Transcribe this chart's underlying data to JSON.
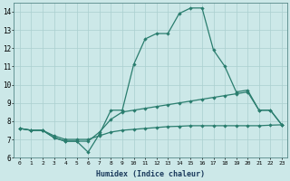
{
  "xlabel": "Humidex (Indice chaleur)",
  "x_values": [
    0,
    1,
    2,
    3,
    4,
    5,
    6,
    7,
    8,
    9,
    10,
    11,
    12,
    13,
    14,
    15,
    16,
    17,
    18,
    19,
    20,
    21,
    22,
    23
  ],
  "line1": [
    7.6,
    7.5,
    7.5,
    7.1,
    6.9,
    6.9,
    6.3,
    7.3,
    8.6,
    8.6,
    11.1,
    12.5,
    12.8,
    12.8,
    13.9,
    14.2,
    14.2,
    11.9,
    11.0,
    9.6,
    9.7,
    8.6,
    8.6,
    7.8
  ],
  "line2": [
    7.6,
    7.5,
    7.5,
    7.1,
    6.9,
    6.9,
    6.9,
    7.4,
    8.1,
    8.5,
    8.6,
    8.7,
    8.8,
    8.9,
    9.0,
    9.1,
    9.2,
    9.3,
    9.4,
    9.5,
    9.6,
    8.6,
    8.6,
    7.8
  ],
  "line3": [
    7.6,
    7.5,
    7.5,
    7.2,
    7.0,
    7.0,
    7.0,
    7.2,
    7.4,
    7.5,
    7.55,
    7.6,
    7.65,
    7.7,
    7.72,
    7.75,
    7.75,
    7.75,
    7.75,
    7.75,
    7.75,
    7.75,
    7.78,
    7.8
  ],
  "line_color": "#2a7d6e",
  "bg_color": "#cce8e8",
  "grid_color": "#aacfcf",
  "ylim": [
    6,
    14.5
  ],
  "yticks": [
    6,
    7,
    8,
    9,
    10,
    11,
    12,
    13,
    14
  ]
}
